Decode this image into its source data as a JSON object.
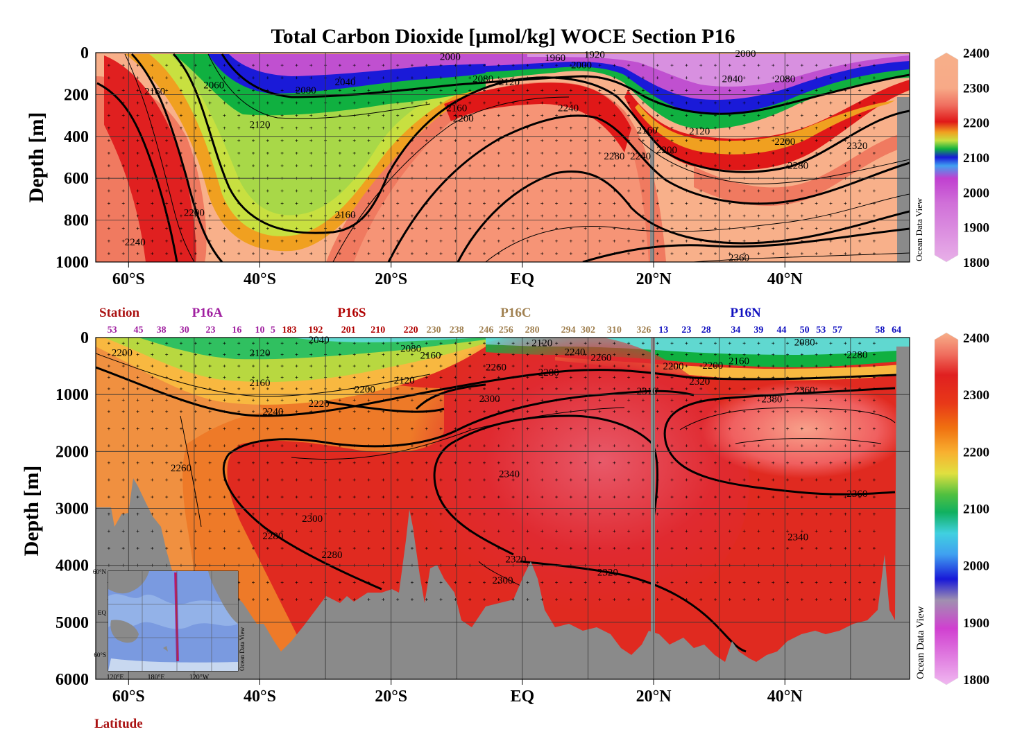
{
  "title": "Total Carbon Dioxide [µmol/kg]  WOCE Section P16",
  "colors": {
    "bathymetry": "#8a8a8a",
    "grid": "#222222",
    "station_label_red": "#aa1111",
    "p16a": "#a020a0",
    "p16s": "#b00000",
    "p16c": "#a08050",
    "p16n": "#1010c0"
  },
  "chart_data": [
    {
      "panel": "upper",
      "type": "heatmap",
      "ylabel": "Depth [m]",
      "x_ticks": [
        "60°S",
        "40°S",
        "20°S",
        "EQ",
        "20°N",
        "40°N"
      ],
      "x_values": [
        -60,
        -40,
        -20,
        0,
        20,
        40
      ],
      "xlim": [
        -65,
        59
      ],
      "y_ticks": [
        "0",
        "200",
        "400",
        "600",
        "800",
        "1000"
      ],
      "y_values": [
        0,
        200,
        400,
        600,
        800,
        1000
      ],
      "ylim": [
        0,
        1000
      ],
      "colorbar": {
        "range": [
          1800,
          2400
        ],
        "ticks": [
          "2400",
          "2300",
          "2200",
          "2100",
          "2000",
          "1900",
          "1800"
        ],
        "tick_values": [
          2400,
          2300,
          2200,
          2100,
          2000,
          1900,
          1800
        ],
        "label": "Ocean Data View"
      },
      "contour_labels": [
        {
          "text": "2060",
          "lat": -47,
          "depth": 170
        },
        {
          "text": "2040",
          "lat": -27,
          "depth": 155
        },
        {
          "text": "2080",
          "lat": -33,
          "depth": 195
        },
        {
          "text": "2120",
          "lat": -40,
          "depth": 360
        },
        {
          "text": "2000",
          "lat": -11,
          "depth": 35
        },
        {
          "text": "1960",
          "lat": 5,
          "depth": 40
        },
        {
          "text": "1920",
          "lat": 11,
          "depth": 25
        },
        {
          "text": "2000",
          "lat": 9,
          "depth": 75
        },
        {
          "text": "2080",
          "lat": -6,
          "depth": 140
        },
        {
          "text": "2120",
          "lat": -2,
          "depth": 155
        },
        {
          "text": "2160",
          "lat": -10,
          "depth": 280
        },
        {
          "text": "2200",
          "lat": -9,
          "depth": 330
        },
        {
          "text": "2240",
          "lat": 7,
          "depth": 280
        },
        {
          "text": "2280",
          "lat": 14,
          "depth": 510
        },
        {
          "text": "2240",
          "lat": 18,
          "depth": 510
        },
        {
          "text": "2160",
          "lat": 19,
          "depth": 385
        },
        {
          "text": "2200",
          "lat": 22,
          "depth": 480
        },
        {
          "text": "2120",
          "lat": 27,
          "depth": 390
        },
        {
          "text": "2040",
          "lat": 32,
          "depth": 140
        },
        {
          "text": "2080",
          "lat": 40,
          "depth": 140
        },
        {
          "text": "2000",
          "lat": 34,
          "depth": 20
        },
        {
          "text": "2160",
          "lat": -56,
          "depth": 200
        },
        {
          "text": "2200",
          "lat": -50,
          "depth": 780
        },
        {
          "text": "2240",
          "lat": -59,
          "depth": 920
        },
        {
          "text": "2160",
          "lat": -27,
          "depth": 790
        },
        {
          "text": "2200",
          "lat": 40,
          "depth": 440
        },
        {
          "text": "2280",
          "lat": 42,
          "depth": 555
        },
        {
          "text": "2320",
          "lat": 51,
          "depth": 460
        },
        {
          "text": "2360",
          "lat": 33,
          "depth": 995
        }
      ]
    },
    {
      "panel": "lower",
      "type": "heatmap",
      "ylabel": "Depth [m]",
      "xlabel": "Latitude",
      "x_ticks": [
        "60°S",
        "40°S",
        "20°S",
        "EQ",
        "20°N",
        "40°N"
      ],
      "x_values": [
        -60,
        -40,
        -20,
        0,
        20,
        40
      ],
      "xlim": [
        -65,
        59
      ],
      "y_ticks": [
        "0",
        "1000",
        "2000",
        "3000",
        "4000",
        "5000",
        "6000"
      ],
      "y_values": [
        0,
        1000,
        2000,
        3000,
        4000,
        5000,
        6000
      ],
      "ylim": [
        0,
        6000
      ],
      "colorbar": {
        "range": [
          1800,
          2400
        ],
        "ticks": [
          "2400",
          "2300",
          "2200",
          "2100",
          "2000",
          "1900",
          "1800"
        ],
        "tick_values": [
          2400,
          2300,
          2200,
          2100,
          2000,
          1900,
          1800
        ],
        "label": "Ocean Data View"
      },
      "station_header": "Station",
      "sections": [
        {
          "name": "P16A",
          "lat": -48,
          "color": "#a020a0"
        },
        {
          "name": "P16S",
          "lat": -26,
          "color": "#b00000"
        },
        {
          "name": "P16C",
          "lat": -1,
          "color": "#a08050"
        },
        {
          "name": "P16N",
          "lat": 34,
          "color": "#1010c0"
        }
      ],
      "stations": [
        {
          "label": "53",
          "lat": -62.5,
          "color": "#a020a0"
        },
        {
          "label": "45",
          "lat": -58.5,
          "color": "#a020a0"
        },
        {
          "label": "38",
          "lat": -55,
          "color": "#a020a0"
        },
        {
          "label": "30",
          "lat": -51.5,
          "color": "#a020a0"
        },
        {
          "label": "23",
          "lat": -47.5,
          "color": "#a020a0"
        },
        {
          "label": "16",
          "lat": -43.5,
          "color": "#a020a0"
        },
        {
          "label": "10",
          "lat": -40,
          "color": "#a020a0"
        },
        {
          "label": "5",
          "lat": -38,
          "color": "#a020a0"
        },
        {
          "label": "183",
          "lat": -35.5,
          "color": "#b00000"
        },
        {
          "label": "192",
          "lat": -31.5,
          "color": "#b00000"
        },
        {
          "label": "201",
          "lat": -26.5,
          "color": "#b00000"
        },
        {
          "label": "210",
          "lat": -22,
          "color": "#b00000"
        },
        {
          "label": "220",
          "lat": -17,
          "color": "#b00000"
        },
        {
          "label": "230",
          "lat": -13.5,
          "color": "#a08050"
        },
        {
          "label": "238",
          "lat": -10,
          "color": "#a08050"
        },
        {
          "label": "246",
          "lat": -5.5,
          "color": "#a08050"
        },
        {
          "label": "256",
          "lat": -2.5,
          "color": "#a08050"
        },
        {
          "label": "280",
          "lat": 1.5,
          "color": "#a08050"
        },
        {
          "label": "294",
          "lat": 7,
          "color": "#a08050"
        },
        {
          "label": "302",
          "lat": 10,
          "color": "#a08050"
        },
        {
          "label": "310",
          "lat": 14,
          "color": "#a08050"
        },
        {
          "label": "326",
          "lat": 18.5,
          "color": "#a08050"
        },
        {
          "label": "13",
          "lat": 21.5,
          "color": "#1010c0"
        },
        {
          "label": "23",
          "lat": 25,
          "color": "#1010c0"
        },
        {
          "label": "28",
          "lat": 28,
          "color": "#1010c0"
        },
        {
          "label": "34",
          "lat": 32.5,
          "color": "#1010c0"
        },
        {
          "label": "39",
          "lat": 36,
          "color": "#1010c0"
        },
        {
          "label": "44",
          "lat": 39.5,
          "color": "#1010c0"
        },
        {
          "label": "50",
          "lat": 43,
          "color": "#1010c0"
        },
        {
          "label": "53",
          "lat": 45.5,
          "color": "#1010c0"
        },
        {
          "label": "57",
          "lat": 48,
          "color": "#1010c0"
        },
        {
          "label": "58",
          "lat": 54.5,
          "color": "#1010c0"
        },
        {
          "label": "64",
          "lat": 57,
          "color": "#1010c0"
        }
      ],
      "contour_labels": [
        {
          "text": "2200",
          "lat": -61,
          "depth": 320
        },
        {
          "text": "2120",
          "lat": -40,
          "depth": 330
        },
        {
          "text": "2040",
          "lat": -31,
          "depth": 100
        },
        {
          "text": "2160",
          "lat": -40,
          "depth": 850
        },
        {
          "text": "2200",
          "lat": -24,
          "depth": 970
        },
        {
          "text": "2120",
          "lat": -18,
          "depth": 810
        },
        {
          "text": "2160",
          "lat": -14,
          "depth": 370
        },
        {
          "text": "2080",
          "lat": -17,
          "depth": 250
        },
        {
          "text": "2260",
          "lat": -4,
          "depth": 580
        },
        {
          "text": "2120",
          "lat": 3,
          "depth": 150
        },
        {
          "text": "2280",
          "lat": 4,
          "depth": 670
        },
        {
          "text": "2240",
          "lat": 8,
          "depth": 310
        },
        {
          "text": "2260",
          "lat": 12,
          "depth": 410
        },
        {
          "text": "2300",
          "lat": -5,
          "depth": 1130
        },
        {
          "text": "2220",
          "lat": -31,
          "depth": 1220
        },
        {
          "text": "2240",
          "lat": -38,
          "depth": 1360
        },
        {
          "text": "2260",
          "lat": -52,
          "depth": 2350
        },
        {
          "text": "2300",
          "lat": -32,
          "depth": 3240
        },
        {
          "text": "2280",
          "lat": -38,
          "depth": 3540
        },
        {
          "text": "2280",
          "lat": -29,
          "depth": 3870
        },
        {
          "text": "2340",
          "lat": -2,
          "depth": 2450
        },
        {
          "text": "2320",
          "lat": -1,
          "depth": 3950
        },
        {
          "text": "2300",
          "lat": -3,
          "depth": 4320
        },
        {
          "text": "2320",
          "lat": 13,
          "depth": 4180
        },
        {
          "text": "2310",
          "lat": 19,
          "depth": 1000
        },
        {
          "text": "2320",
          "lat": 27,
          "depth": 830
        },
        {
          "text": "2200",
          "lat": 23,
          "depth": 560
        },
        {
          "text": "2200",
          "lat": 29,
          "depth": 550
        },
        {
          "text": "2160",
          "lat": 33,
          "depth": 470
        },
        {
          "text": "2080",
          "lat": 43,
          "depth": 140
        },
        {
          "text": "2280",
          "lat": 51,
          "depth": 360
        },
        {
          "text": "2360",
          "lat": 43,
          "depth": 980
        },
        {
          "text": "2380",
          "lat": 38,
          "depth": 1140
        },
        {
          "text": "2360",
          "lat": 51,
          "depth": 2800
        },
        {
          "text": "2340",
          "lat": 42,
          "depth": 3560
        }
      ],
      "inset_map": {
        "lat_labels": [
          "60°N",
          "EQ",
          "60°S"
        ],
        "lon_labels": [
          "120°E",
          "180°E",
          "120°W"
        ],
        "label": "Ocean Data View"
      }
    }
  ]
}
